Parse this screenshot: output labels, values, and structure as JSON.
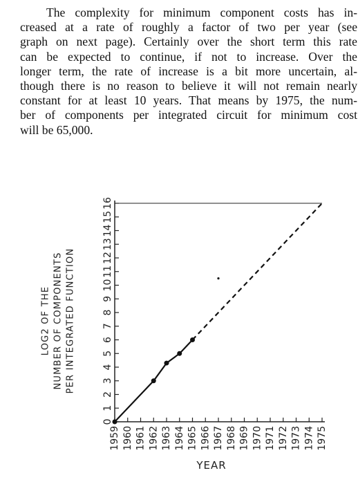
{
  "paragraph": {
    "lines": [
      "The complexity for minimum component costs has in-",
      "creased at a rate of roughly a factor of two per year (see",
      "graph on next page). Certainly over the short term this rate",
      "can be expected to continue, if not to increase. Over the",
      "longer term, the rate of increase is a bit more uncertain, al-",
      "though there is no reason to believe it will not remain nearly",
      "constant for at least 10 years. That means by 1975, the num-",
      "ber of components per integrated circuit for minimum cost",
      "will be 65,000."
    ]
  },
  "chart_data": {
    "type": "line",
    "ylabel_lines": [
      "LOG2 OF THE",
      "NUMBER OF COMPONENTS",
      "PER INTEGRATED FUNCTION"
    ],
    "xlabel": "YEAR",
    "x_ticks": [
      "1959",
      "1960",
      "1961",
      "1962",
      "1963",
      "1964",
      "1965",
      "1966",
      "1967",
      "1968",
      "1969",
      "1970",
      "1971",
      "1972",
      "1973",
      "1974",
      "1975"
    ],
    "y_ticks": [
      "0",
      "1",
      "2",
      "3",
      "4",
      "5",
      "6",
      "7",
      "8",
      "9",
      "10",
      "11",
      "12",
      "13",
      "14",
      "15",
      "16"
    ],
    "xlim": [
      1959,
      1975
    ],
    "ylim": [
      0,
      16
    ],
    "series": [
      {
        "style": "solid",
        "points": [
          [
            1959,
            0
          ],
          [
            1962,
            3
          ],
          [
            1963,
            4.3
          ],
          [
            1964,
            5
          ],
          [
            1965,
            6
          ]
        ]
      },
      {
        "style": "dashed",
        "points": [
          [
            1965,
            6
          ],
          [
            1975,
            16
          ]
        ]
      }
    ],
    "stray_points": [
      [
        1967,
        10.5
      ]
    ],
    "grid": false
  }
}
